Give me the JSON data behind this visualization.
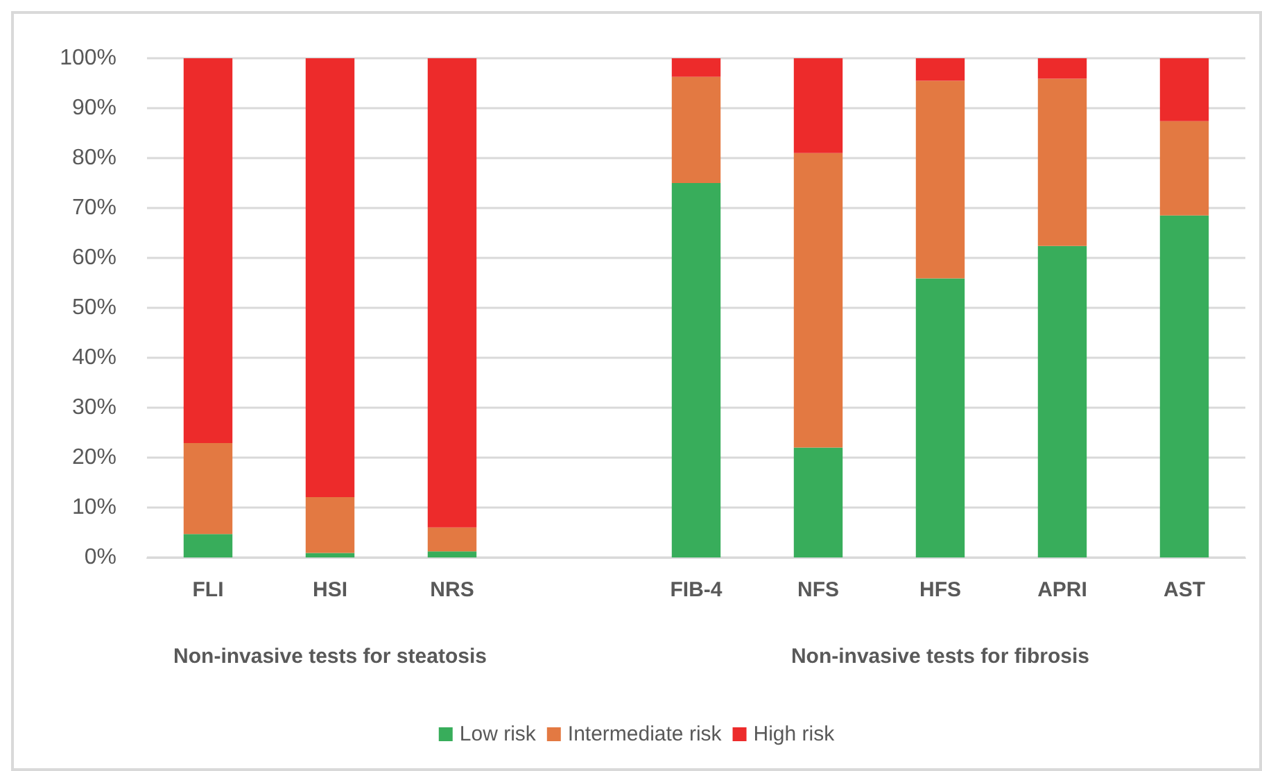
{
  "chart_data": {
    "type": "bar",
    "stacked": true,
    "categories": [
      "FLI",
      "HSI",
      "NRS",
      null,
      "FIB-4",
      "NFS",
      "HFS",
      "APRI",
      "AST"
    ],
    "series": [
      {
        "name": "Low risk",
        "color": "#38ad5b",
        "values": [
          4.7,
          0.9,
          1.2,
          null,
          75.0,
          22.0,
          55.9,
          62.4,
          68.5
        ]
      },
      {
        "name": "Intermediate risk",
        "color": "#e37942",
        "values": [
          18.2,
          11.2,
          4.8,
          null,
          21.3,
          59.0,
          39.6,
          33.5,
          18.9
        ]
      },
      {
        "name": "High risk",
        "color": "#ed2b2b",
        "values": [
          77.1,
          87.9,
          94.0,
          null,
          3.7,
          19.0,
          4.5,
          4.1,
          12.6
        ]
      }
    ],
    "ylim": [
      0,
      100
    ],
    "yticks": [
      {
        "value": 0,
        "label": "0%"
      },
      {
        "value": 10,
        "label": "10%"
      },
      {
        "value": 20,
        "label": "20%"
      },
      {
        "value": 30,
        "label": "30%"
      },
      {
        "value": 40,
        "label": "40%"
      },
      {
        "value": 50,
        "label": "50%"
      },
      {
        "value": 60,
        "label": "60%"
      },
      {
        "value": 70,
        "label": "70%"
      },
      {
        "value": 80,
        "label": "80%"
      },
      {
        "value": 90,
        "label": "90%"
      },
      {
        "value": 100,
        "label": "100%"
      }
    ],
    "grid": "y",
    "legend": "bottom",
    "annotations": [
      "Non-invasive tests for steatosis",
      "Non-invasive tests for fibrosis"
    ]
  }
}
